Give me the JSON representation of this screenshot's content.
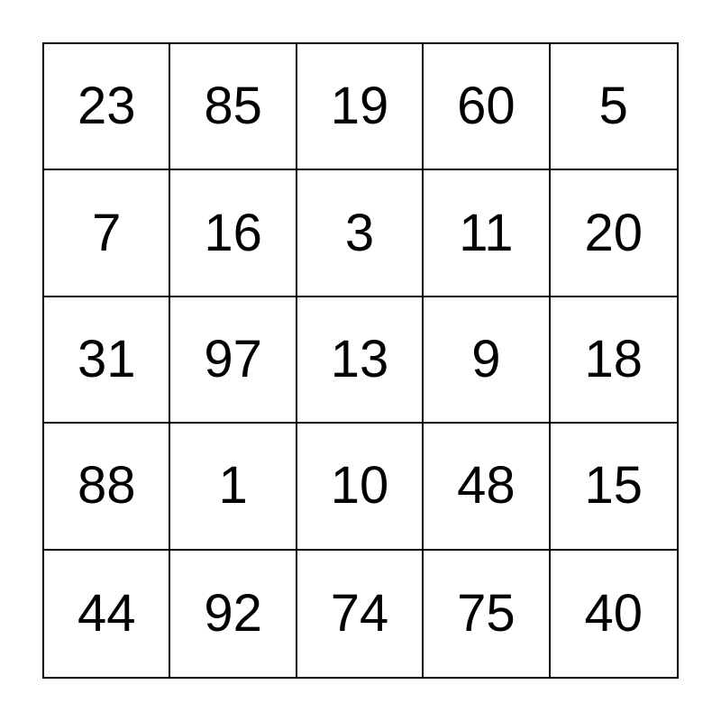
{
  "card": {
    "type": "bingo-number-card",
    "grid_size": "5x5",
    "rows": [
      [
        "23",
        "85",
        "19",
        "60",
        "5"
      ],
      [
        "7",
        "16",
        "3",
        "11",
        "20"
      ],
      [
        "31",
        "97",
        "13",
        "9",
        "18"
      ],
      [
        "88",
        "1",
        "10",
        "48",
        "15"
      ],
      [
        "44",
        "92",
        "74",
        "75",
        "40"
      ]
    ],
    "colors": {
      "background": "#ffffff",
      "grid_line": "#000000",
      "text": "#000000"
    }
  }
}
